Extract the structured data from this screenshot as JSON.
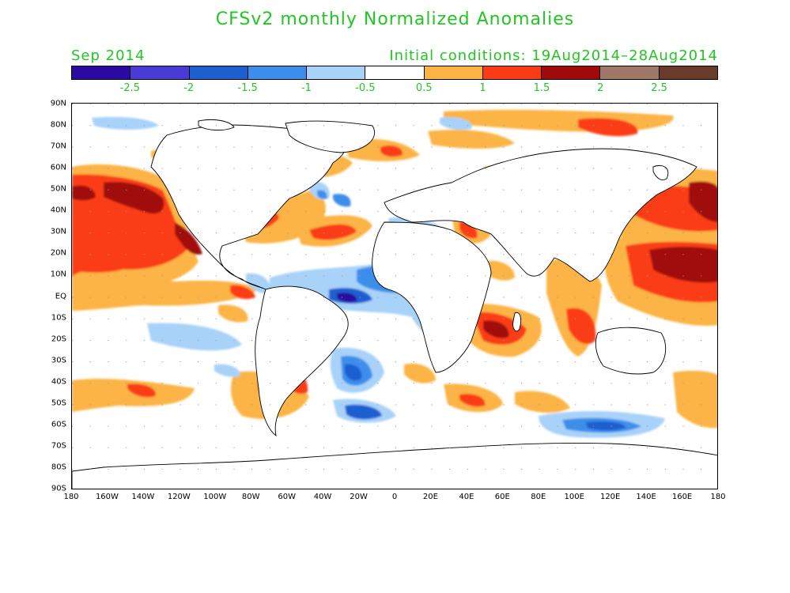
{
  "title": "CFSv2 monthly Normalized Anomalies",
  "month": "Sep 2014",
  "initial_conditions": "Initial conditions: 19Aug2014–28Aug2014",
  "colorbar": {
    "colors": [
      "#2a0aa0",
      "#4a3ad6",
      "#1e5fd0",
      "#3c8eea",
      "#a8d2f8",
      "#ffffff",
      "#fbb444",
      "#fa3c14",
      "#a00a0a",
      "#a07868",
      "#6a3a2a"
    ],
    "labels": [
      "-2.5",
      "-2",
      "-1.5",
      "-1",
      "-0.5",
      "0.5",
      "1",
      "1.5",
      "2",
      "2.5"
    ]
  },
  "y_axis": [
    "90N",
    "80N",
    "70N",
    "60N",
    "50N",
    "40N",
    "30N",
    "20N",
    "10N",
    "EQ",
    "10S",
    "20S",
    "30S",
    "40S",
    "50S",
    "60S",
    "70S",
    "80S",
    "90S"
  ],
  "x_axis": [
    "180",
    "160W",
    "140W",
    "120W",
    "100W",
    "80W",
    "60W",
    "40W",
    "20W",
    "0",
    "20E",
    "40E",
    "60E",
    "80E",
    "100E",
    "120E",
    "140E",
    "160E",
    "180"
  ]
}
